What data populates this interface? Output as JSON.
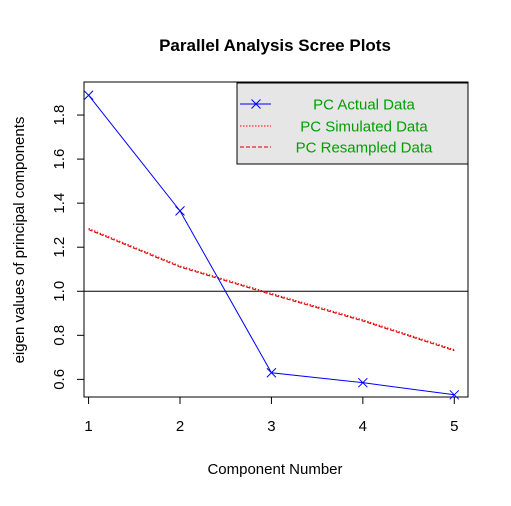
{
  "chart_data": {
    "type": "line",
    "title": "Parallel Analysis Scree Plots",
    "xlabel": "Component Number",
    "ylabel": "eigen values of principal components",
    "x": [
      1,
      2,
      3,
      4,
      5
    ],
    "xlim": [
      0.95,
      5.15
    ],
    "ylim": [
      0.52,
      1.95
    ],
    "xticks": [
      1,
      2,
      3,
      4,
      5
    ],
    "yticks": [
      0.6,
      0.8,
      1.0,
      1.2,
      1.4,
      1.6,
      1.8
    ],
    "ytick_labels": [
      "0.6",
      "0.8",
      "1.0",
      "1.2",
      "1.4",
      "1.6",
      "1.8"
    ],
    "reference_line": {
      "y": 1.0,
      "color": "#000000"
    },
    "grid": false,
    "legend_position": "top-right",
    "legend_background": "#e6e6e6",
    "legend_text_color": "#00a000",
    "series": [
      {
        "name": "PC  Actual Data",
        "values": [
          1.89,
          1.365,
          0.63,
          0.585,
          0.53
        ],
        "color": "#0000ff",
        "style": "solid",
        "marker": "x"
      },
      {
        "name": "PC  Simulated Data",
        "values": [
          1.285,
          1.115,
          0.99,
          0.87,
          0.735
        ],
        "color": "#ff0000",
        "style": "dotted",
        "marker": "none"
      },
      {
        "name": "PC  Resampled Data",
        "values": [
          1.28,
          1.11,
          0.985,
          0.865,
          0.73
        ],
        "color": "#cc0000",
        "style": "dashed",
        "marker": "none"
      }
    ]
  }
}
